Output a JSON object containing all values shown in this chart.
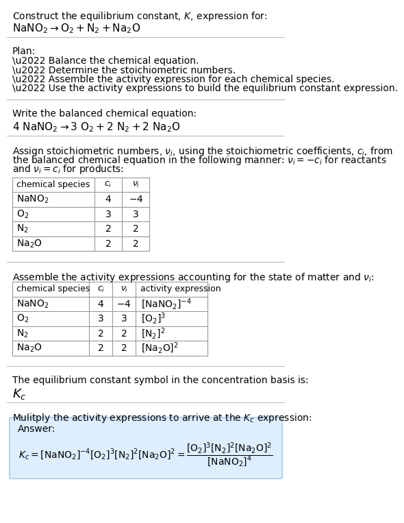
{
  "title_line1": "Construct the equilibrium constant, $K$, expression for:",
  "title_line2": "$\\mathrm{NaNO_2} \\rightarrow \\mathrm{O_2 + N_2 + Na_2O}$",
  "plan_header": "Plan:",
  "plan_items": [
    "\\u2022 Balance the chemical equation.",
    "\\u2022 Determine the stoichiometric numbers.",
    "\\u2022 Assemble the activity expression for each chemical species.",
    "\\u2022 Use the activity expressions to build the equilibrium constant expression."
  ],
  "balanced_header": "Write the balanced chemical equation:",
  "balanced_eq": "$4\\ \\mathrm{NaNO_2} \\rightarrow 3\\ \\mathrm{O_2} + 2\\ \\mathrm{N_2} + 2\\ \\mathrm{Na_2O}$",
  "stoich_intro": [
    "Assign stoichiometric numbers, $\\nu_i$, using the stoichiometric coefficients, $c_i$, from",
    "the balanced chemical equation in the following manner: $\\nu_i = -c_i$ for reactants",
    "and $\\nu_i = c_i$ for products:"
  ],
  "table1_headers": [
    "chemical species",
    "$c_i$",
    "$\\nu_i$"
  ],
  "table1_rows": [
    [
      "$\\mathrm{NaNO_2}$",
      "4",
      "$-4$"
    ],
    [
      "$\\mathrm{O_2}$",
      "3",
      "3"
    ],
    [
      "$\\mathrm{N_2}$",
      "2",
      "2"
    ],
    [
      "$\\mathrm{Na_2O}$",
      "2",
      "2"
    ]
  ],
  "assemble_header": "Assemble the activity expressions accounting for the state of matter and $\\nu_i$:",
  "table2_headers": [
    "chemical species",
    "$c_i$",
    "$\\nu_i$",
    "activity expression"
  ],
  "table2_rows": [
    [
      "$\\mathrm{NaNO_2}$",
      "4",
      "$-4$",
      "$[\\mathrm{NaNO_2}]^{-4}$"
    ],
    [
      "$\\mathrm{O_2}$",
      "3",
      "3",
      "$[\\mathrm{O_2}]^3$"
    ],
    [
      "$\\mathrm{N_2}$",
      "2",
      "2",
      "$[\\mathrm{N_2}]^2$"
    ],
    [
      "$\\mathrm{Na_2O}$",
      "2",
      "2",
      "$[\\mathrm{Na_2O}]^2$"
    ]
  ],
  "kc_header": "The equilibrium constant symbol in the concentration basis is:",
  "kc_symbol": "$K_c$",
  "multiply_header": "Mulitply the activity expressions to arrive at the $K_c$ expression:",
  "answer_label": "Answer:",
  "bg_color": "#ffffff",
  "answer_box_color": "#ddeeff",
  "answer_box_edge": "#aaccee",
  "separator_color": "#bbbbbb",
  "text_color": "#000000",
  "table_border_color": "#999999",
  "font_size": 10.0,
  "small_font": 9.0,
  "title_font": 11.0
}
